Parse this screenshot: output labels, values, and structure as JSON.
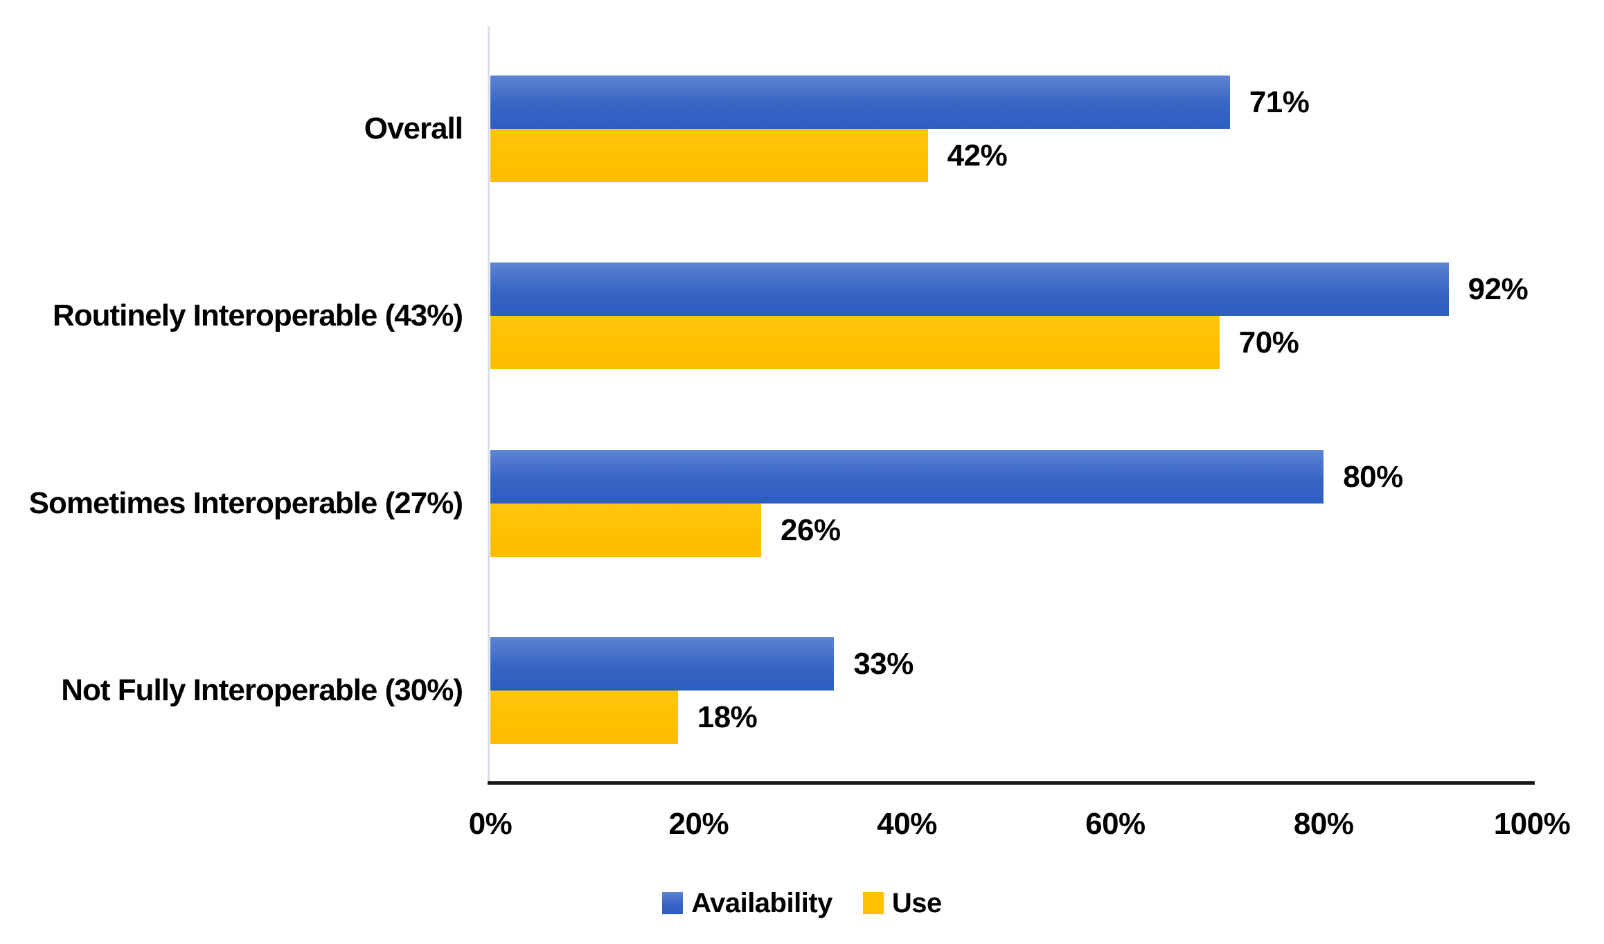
{
  "chart_data": {
    "type": "bar",
    "orientation": "horizontal",
    "title": "",
    "xlabel": "",
    "ylabel": "",
    "categories": [
      "Overall",
      "Routinely Interoperable (43%)",
      "Sometimes Interoperable (27%)",
      "Not Fully Interoperable (30%)"
    ],
    "series": [
      {
        "name": "Availability",
        "color": "#3a66c4",
        "values": [
          71,
          92,
          80,
          33
        ]
      },
      {
        "name": "Use",
        "color": "#ffc000",
        "values": [
          42,
          70,
          26,
          18
        ]
      }
    ],
    "data_labels": [
      [
        "71%",
        "92%",
        "80%",
        "33%"
      ],
      [
        "42%",
        "70%",
        "26%",
        "18%"
      ]
    ],
    "x_ticks": [
      "0%",
      "20%",
      "40%",
      "60%",
      "80%",
      "100%"
    ],
    "x_tick_values": [
      0,
      20,
      40,
      60,
      80,
      100
    ],
    "xlim": [
      0,
      100
    ],
    "grid": false,
    "legend_position": "bottom",
    "colors": {
      "availability_gradient_top": "#5e84d2",
      "availability_gradient_bottom": "#2d5dc0",
      "use_fill": "#ffc000",
      "category_axis_line": "#d8dde6",
      "value_axis_line": "#161616",
      "text": "#000000",
      "background": "#ffffff"
    }
  }
}
